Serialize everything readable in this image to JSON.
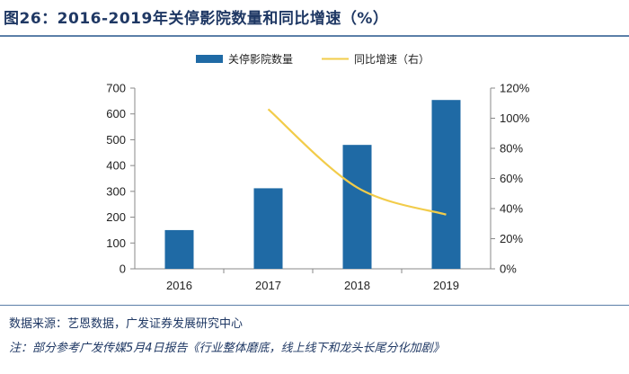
{
  "figure": {
    "title": "图26：2016-2019年关停影院数量和同比增速（%）",
    "source": "数据来源：艺恩数据，广发证券发展研究中心",
    "note": "注：部分参考广发传媒5月4日报告《行业整体磨底，线上线下和龙头长尾分化加剧》"
  },
  "colors": {
    "bar": "#1f6aa5",
    "line": "#f2cc4a",
    "rule": "#5b7fa8",
    "title": "#1f3864"
  },
  "chart_data": {
    "type": "bar+line",
    "categories": [
      "2016",
      "2017",
      "2018",
      "2019"
    ],
    "series": [
      {
        "name": "关停影院数量",
        "type": "bar",
        "axis": "left",
        "values": [
          150,
          312,
          480,
          654
        ]
      },
      {
        "name": "同比增速（右）",
        "type": "line",
        "axis": "right",
        "values": [
          null,
          106,
          54,
          36
        ]
      }
    ],
    "y_left": {
      "min": 0,
      "max": 700,
      "ticks": [
        "0",
        "100",
        "200",
        "300",
        "400",
        "500",
        "600",
        "700"
      ]
    },
    "y_right": {
      "min": 0,
      "max": 120,
      "ticks": [
        "0%",
        "20%",
        "40%",
        "60%",
        "80%",
        "100%",
        "120%"
      ]
    },
    "legend_position": "top-center",
    "grid": false
  }
}
